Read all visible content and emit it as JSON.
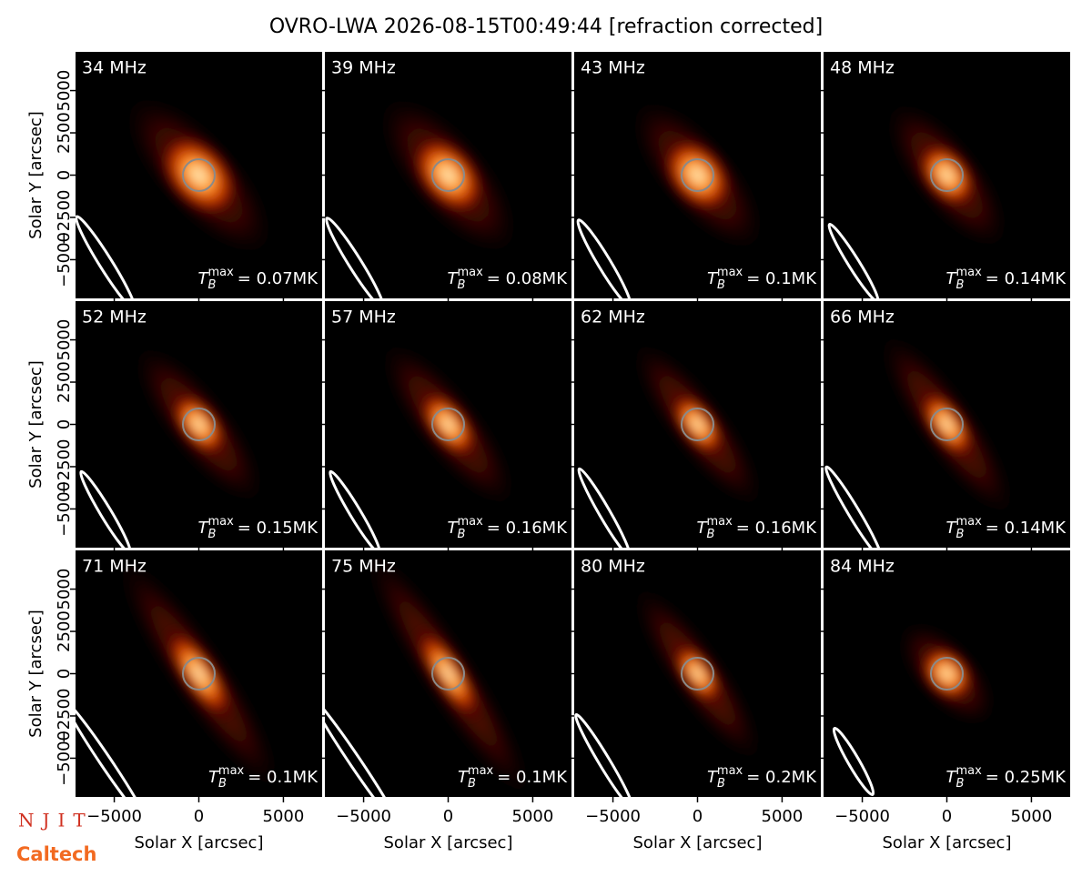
{
  "chart_data": {
    "type": "image-grid",
    "title": "OVRO-LWA 2026-08-15T00:49:44 [refraction corrected]",
    "x_label": "Solar X [arcsec]",
    "y_label": "Solar Y [arcsec]",
    "xlim": [
      -7290,
      7290
    ],
    "ylim": [
      -7290,
      7290
    ],
    "xticks": [
      {
        "value": -5000,
        "label": "−5000"
      },
      0,
      5000
    ],
    "yticks": [
      {
        "value": -5000,
        "label": "−5000"
      },
      {
        "value": -2500,
        "label": "−2500"
      },
      0,
      2500,
      5000
    ],
    "tmax_symbol": {
      "base": "T",
      "sub": "B",
      "sup": "max"
    },
    "panels": [
      {
        "frequency": "34 MHz",
        "tmax": "= 0.07MK"
      },
      {
        "frequency": "39 MHz",
        "tmax": "= 0.08MK"
      },
      {
        "frequency": "43 MHz",
        "tmax": "= 0.1MK"
      },
      {
        "frequency": "48 MHz",
        "tmax": "= 0.14MK"
      },
      {
        "frequency": "52 MHz",
        "tmax": "= 0.15MK"
      },
      {
        "frequency": "57 MHz",
        "tmax": "= 0.16MK"
      },
      {
        "frequency": "62 MHz",
        "tmax": "= 0.16MK"
      },
      {
        "frequency": "66 MHz",
        "tmax": "= 0.14MK"
      },
      {
        "frequency": "71 MHz",
        "tmax": "= 0.1MK"
      },
      {
        "frequency": "75 MHz",
        "tmax": "= 0.1MK"
      },
      {
        "frequency": "80 MHz",
        "tmax": "= 0.2MK"
      },
      {
        "frequency": "84 MHz",
        "tmax": "= 0.25MK"
      }
    ],
    "logos": [
      "NJIT",
      "Caltech"
    ]
  }
}
